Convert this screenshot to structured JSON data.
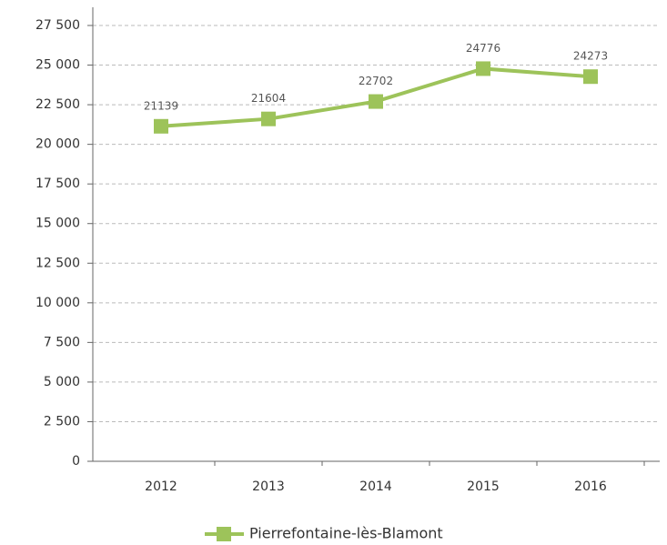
{
  "chart_data": {
    "type": "line",
    "categories": [
      "2012",
      "2013",
      "2014",
      "2015",
      "2016"
    ],
    "series": [
      {
        "name": "Pierrefontaine-lès-Blamont",
        "color": "#9dc35a",
        "values": [
          21139,
          21604,
          22702,
          24776,
          24273
        ]
      }
    ],
    "ylim": [
      0,
      27500
    ],
    "yticks": [
      0,
      {
        "value": 2500,
        "label": "2 500"
      },
      {
        "value": 5000,
        "label": "5 000"
      },
      {
        "value": 7500,
        "label": "7 500"
      },
      {
        "value": 10000,
        "label": "10 000"
      },
      {
        "value": 12500,
        "label": "12 500"
      },
      {
        "value": 15000,
        "label": "15 000"
      },
      {
        "value": 17500,
        "label": "17 500"
      },
      {
        "value": 20000,
        "label": "20 000"
      },
      {
        "value": 22500,
        "label": "22 500"
      },
      {
        "value": 25000,
        "label": "25 000"
      },
      {
        "value": 27500,
        "label": "27 500"
      }
    ],
    "grid": true,
    "legend": "bottom"
  }
}
